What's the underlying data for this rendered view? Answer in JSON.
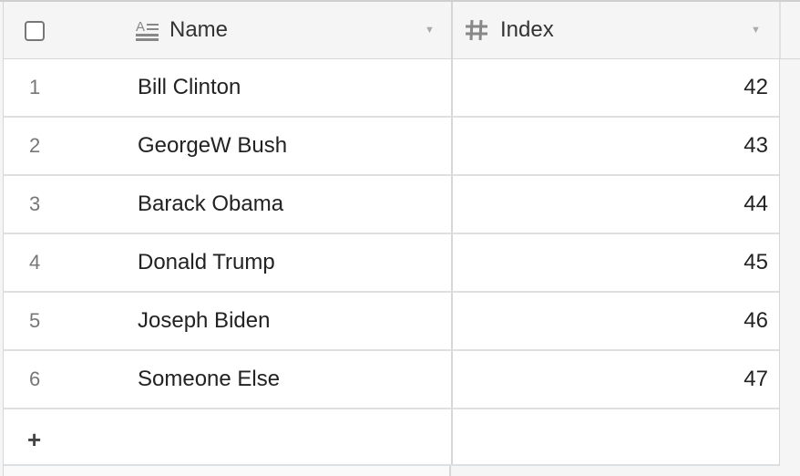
{
  "columns": [
    {
      "label": "Name",
      "icon": "text-field-icon"
    },
    {
      "label": "Index",
      "icon": "number-field-icon"
    }
  ],
  "rows": [
    {
      "num": "1",
      "name": "Bill Clinton",
      "index": "42"
    },
    {
      "num": "2",
      "name": "GeorgeW Bush",
      "index": "43"
    },
    {
      "num": "3",
      "name": "Barack Obama",
      "index": "44"
    },
    {
      "num": "4",
      "name": "Donald Trump",
      "index": "45"
    },
    {
      "num": "5",
      "name": "Joseph Biden",
      "index": "46"
    },
    {
      "num": "6",
      "name": "Someone Else",
      "index": "47"
    }
  ],
  "add_row": {
    "label": "+"
  }
}
